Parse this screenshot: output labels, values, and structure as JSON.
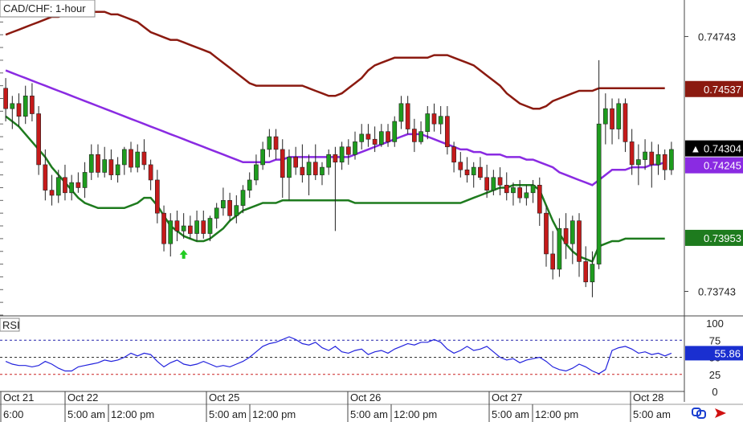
{
  "title": "CAD/CHF: 1-hour",
  "chart_data": {
    "type": "candlestick",
    "title": "CAD/CHF: 1-hour",
    "symbol": "CAD/CHF",
    "timeframe": "1-hour",
    "price_ticks": [
      "0.74743",
      "0.73743"
    ],
    "price_ylim": [
      0.7365,
      0.7488
    ],
    "date_labels": [
      "Oct 21",
      "Oct 22",
      "Oct 25",
      "Oct 26",
      "Oct 27",
      "Oct 28"
    ],
    "time_labels": [
      "6:00",
      "5:00 am",
      "12:00 pm",
      "5:00 am",
      "12:00 pm",
      "5:00 am",
      "12:00 pm",
      "5:00 am",
      "12:00 pm",
      "5:00 am"
    ],
    "price_badges": [
      {
        "label": "0.74537",
        "value": 0.74537,
        "color": "#8b1a10"
      },
      {
        "label": "▲ 0.74304",
        "value": 0.74304,
        "color": "#000000"
      },
      {
        "label": "0.74245",
        "value": 0.74245,
        "color": "#8a2be2"
      },
      {
        "label": "0.73953",
        "value": 0.73953,
        "color": "#1e7b1e"
      }
    ],
    "candles": [
      [
        0.7454,
        0.7458,
        0.7441,
        0.7446
      ],
      [
        0.7446,
        0.7451,
        0.7438,
        0.7448
      ],
      [
        0.7448,
        0.7452,
        0.7439,
        0.7443
      ],
      [
        0.7443,
        0.7455,
        0.744,
        0.7451
      ],
      [
        0.7451,
        0.7456,
        0.7441,
        0.7444
      ],
      [
        0.7444,
        0.7447,
        0.742,
        0.7424
      ],
      [
        0.7424,
        0.743,
        0.741,
        0.7414
      ],
      [
        0.7414,
        0.742,
        0.7408,
        0.7412
      ],
      [
        0.7412,
        0.7422,
        0.7409,
        0.7419
      ],
      [
        0.7419,
        0.7424,
        0.741,
        0.7413
      ],
      [
        0.7413,
        0.742,
        0.741,
        0.7417
      ],
      [
        0.7417,
        0.7421,
        0.7413,
        0.7415
      ],
      [
        0.7415,
        0.7425,
        0.7411,
        0.7421
      ],
      [
        0.7421,
        0.7432,
        0.7418,
        0.7428
      ],
      [
        0.7428,
        0.7432,
        0.7419,
        0.7421
      ],
      [
        0.7421,
        0.7431,
        0.7419,
        0.7426
      ],
      [
        0.7426,
        0.743,
        0.7418,
        0.742
      ],
      [
        0.742,
        0.7427,
        0.7417,
        0.7424
      ],
      [
        0.7424,
        0.7431,
        0.742,
        0.743
      ],
      [
        0.743,
        0.7433,
        0.7421,
        0.7423
      ],
      [
        0.7423,
        0.7432,
        0.7421,
        0.7429
      ],
      [
        0.7429,
        0.7434,
        0.7422,
        0.7424
      ],
      [
        0.7424,
        0.7426,
        0.7414,
        0.7418
      ],
      [
        0.7418,
        0.7422,
        0.7401,
        0.7405
      ],
      [
        0.7405,
        0.7408,
        0.739,
        0.7393
      ],
      [
        0.7393,
        0.7405,
        0.7388,
        0.7402
      ],
      [
        0.7402,
        0.7406,
        0.7394,
        0.7398
      ],
      [
        0.7398,
        0.7405,
        0.7395,
        0.74
      ],
      [
        0.74,
        0.7404,
        0.7395,
        0.7397
      ],
      [
        0.7397,
        0.7406,
        0.7394,
        0.7402
      ],
      [
        0.7402,
        0.7406,
        0.7395,
        0.7397
      ],
      [
        0.7397,
        0.7404,
        0.7394,
        0.7403
      ],
      [
        0.7403,
        0.7409,
        0.7399,
        0.7407
      ],
      [
        0.7407,
        0.7415,
        0.7404,
        0.741
      ],
      [
        0.741,
        0.7413,
        0.7402,
        0.7404
      ],
      [
        0.7404,
        0.7412,
        0.7401,
        0.7408
      ],
      [
        0.7408,
        0.7416,
        0.7405,
        0.7414
      ],
      [
        0.7414,
        0.7421,
        0.7411,
        0.7418
      ],
      [
        0.7418,
        0.7428,
        0.7416,
        0.7424
      ],
      [
        0.7424,
        0.7433,
        0.7422,
        0.743
      ],
      [
        0.743,
        0.7438,
        0.7427,
        0.7435
      ],
      [
        0.7435,
        0.7438,
        0.7426,
        0.743
      ],
      [
        0.743,
        0.7434,
        0.7411,
        0.7419
      ],
      [
        0.7419,
        0.743,
        0.741,
        0.7427
      ],
      [
        0.7427,
        0.7431,
        0.742,
        0.7423
      ],
      [
        0.7423,
        0.7432,
        0.7417,
        0.742
      ],
      [
        0.742,
        0.7428,
        0.7412,
        0.7425
      ],
      [
        0.7425,
        0.7432,
        0.7418,
        0.742
      ],
      [
        0.742,
        0.7425,
        0.7416,
        0.7423
      ],
      [
        0.7423,
        0.743,
        0.742,
        0.7428
      ],
      [
        0.7428,
        0.7431,
        0.7398,
        0.7425
      ],
      [
        0.7425,
        0.7433,
        0.7422,
        0.7431
      ],
      [
        0.7431,
        0.7434,
        0.7424,
        0.7428
      ],
      [
        0.7428,
        0.7437,
        0.7426,
        0.7433
      ],
      [
        0.7433,
        0.744,
        0.743,
        0.7436
      ],
      [
        0.7436,
        0.744,
        0.7431,
        0.7434
      ],
      [
        0.7434,
        0.7439,
        0.7429,
        0.7432
      ],
      [
        0.7432,
        0.744,
        0.7431,
        0.7437
      ],
      [
        0.7437,
        0.744,
        0.7431,
        0.7433
      ],
      [
        0.7433,
        0.7443,
        0.7431,
        0.7441
      ],
      [
        0.7441,
        0.7451,
        0.7438,
        0.7448
      ],
      [
        0.7448,
        0.7451,
        0.7436,
        0.7438
      ],
      [
        0.7438,
        0.7442,
        0.7429,
        0.7433
      ],
      [
        0.7433,
        0.7441,
        0.7432,
        0.7437
      ],
      [
        0.7437,
        0.7447,
        0.7434,
        0.7444
      ],
      [
        0.7444,
        0.7448,
        0.7437,
        0.744
      ],
      [
        0.744,
        0.7447,
        0.7436,
        0.7443
      ],
      [
        0.7443,
        0.7447,
        0.7428,
        0.7431
      ],
      [
        0.7431,
        0.7433,
        0.7421,
        0.7425
      ],
      [
        0.7425,
        0.7429,
        0.7419,
        0.7422
      ],
      [
        0.7422,
        0.7427,
        0.7417,
        0.742
      ],
      [
        0.742,
        0.7425,
        0.7415,
        0.7423
      ],
      [
        0.7423,
        0.7427,
        0.7418,
        0.7419
      ],
      [
        0.7419,
        0.7424,
        0.7411,
        0.7414
      ],
      [
        0.7414,
        0.7422,
        0.7412,
        0.7419
      ],
      [
        0.7419,
        0.7423,
        0.7412,
        0.7416
      ],
      [
        0.7416,
        0.7421,
        0.741,
        0.7413
      ],
      [
        0.7413,
        0.7417,
        0.7408,
        0.7415
      ],
      [
        0.7415,
        0.7418,
        0.7409,
        0.7411
      ],
      [
        0.7411,
        0.7416,
        0.7408,
        0.7413
      ],
      [
        0.7413,
        0.7418,
        0.7409,
        0.7416
      ],
      [
        0.7416,
        0.7419,
        0.74,
        0.7405
      ],
      [
        0.7405,
        0.7408,
        0.7384,
        0.7389
      ],
      [
        0.7389,
        0.7398,
        0.7379,
        0.7383
      ],
      [
        0.7383,
        0.7403,
        0.738,
        0.7399
      ],
      [
        0.7399,
        0.7405,
        0.7387,
        0.7393
      ],
      [
        0.7393,
        0.7404,
        0.7385,
        0.7402
      ],
      [
        0.7402,
        0.7405,
        0.738,
        0.7386
      ],
      [
        0.7386,
        0.7392,
        0.7376,
        0.7378
      ],
      [
        0.7378,
        0.739,
        0.7372,
        0.7385
      ],
      [
        0.7385,
        0.7465,
        0.7383,
        0.744
      ],
      [
        0.744,
        0.7452,
        0.7432,
        0.7446
      ],
      [
        0.7446,
        0.745,
        0.7432,
        0.7438
      ],
      [
        0.7438,
        0.745,
        0.7434,
        0.7448
      ],
      [
        0.7448,
        0.745,
        0.7429,
        0.7433
      ],
      [
        0.7433,
        0.7438,
        0.742,
        0.7424
      ],
      [
        0.7424,
        0.7432,
        0.7416,
        0.7426
      ],
      [
        0.7426,
        0.7434,
        0.7422,
        0.7429
      ],
      [
        0.7429,
        0.7433,
        0.7415,
        0.7424
      ],
      [
        0.7424,
        0.7432,
        0.742,
        0.7428
      ],
      [
        0.7428,
        0.743,
        0.7418,
        0.7422
      ],
      [
        0.7422,
        0.7433,
        0.742,
        0.743
      ]
    ],
    "bands": {
      "upper": [
        0.7475,
        0.7476,
        0.7477,
        0.7478,
        0.7479,
        0.748,
        0.7481,
        0.7482,
        0.7482,
        0.7483,
        0.7483,
        0.7483,
        0.7484,
        0.7484,
        0.7484,
        0.7484,
        0.7483,
        0.7483,
        0.7482,
        0.7481,
        0.748,
        0.7478,
        0.7476,
        0.7475,
        0.7474,
        0.7473,
        0.7473,
        0.7472,
        0.7471,
        0.747,
        0.7469,
        0.7468,
        0.7466,
        0.7464,
        0.7462,
        0.746,
        0.7458,
        0.7456,
        0.7455,
        0.7455,
        0.7455,
        0.7455,
        0.7455,
        0.7455,
        0.7455,
        0.7455,
        0.7454,
        0.7453,
        0.7452,
        0.7451,
        0.7451,
        0.7452,
        0.7454,
        0.7456,
        0.7458,
        0.7461,
        0.7463,
        0.7464,
        0.7465,
        0.7466,
        0.7466,
        0.7466,
        0.7466,
        0.7466,
        0.7466,
        0.7467,
        0.7467,
        0.7467,
        0.7466,
        0.7465,
        0.7464,
        0.7463,
        0.7461,
        0.7459,
        0.7457,
        0.7455,
        0.7452,
        0.745,
        0.7448,
        0.7447,
        0.7446,
        0.7446,
        0.7447,
        0.7449,
        0.745,
        0.7451,
        0.7452,
        0.7453,
        0.7453,
        0.7453,
        0.7454,
        0.7454,
        0.7454,
        0.7454,
        0.7454,
        0.7454,
        0.7454,
        0.7454,
        0.7454,
        0.7454,
        0.7454
      ],
      "middle": [
        0.7461,
        0.746,
        0.7459,
        0.7458,
        0.7457,
        0.7456,
        0.7455,
        0.7454,
        0.7453,
        0.7452,
        0.7451,
        0.745,
        0.7449,
        0.7448,
        0.7447,
        0.7446,
        0.7445,
        0.7444,
        0.7443,
        0.7442,
        0.7441,
        0.744,
        0.7439,
        0.7438,
        0.7437,
        0.7436,
        0.7435,
        0.7434,
        0.7433,
        0.7432,
        0.7431,
        0.743,
        0.7429,
        0.7428,
        0.7427,
        0.7426,
        0.7425,
        0.7425,
        0.7425,
        0.7425,
        0.7425,
        0.7426,
        0.7426,
        0.7427,
        0.7427,
        0.7427,
        0.7427,
        0.7427,
        0.7427,
        0.7427,
        0.7427,
        0.7427,
        0.7427,
        0.7428,
        0.7429,
        0.743,
        0.7431,
        0.7432,
        0.7433,
        0.7434,
        0.7435,
        0.7436,
        0.7436,
        0.7436,
        0.7435,
        0.7434,
        0.7433,
        0.7432,
        0.7431,
        0.743,
        0.743,
        0.7429,
        0.7429,
        0.7428,
        0.7428,
        0.7428,
        0.7427,
        0.7427,
        0.7427,
        0.7426,
        0.7426,
        0.7425,
        0.7424,
        0.7423,
        0.7421,
        0.742,
        0.7419,
        0.7418,
        0.7417,
        0.7416,
        0.7418,
        0.742,
        0.7422,
        0.7422,
        0.7422,
        0.7423,
        0.7423,
        0.7423,
        0.7424,
        0.7424,
        0.7425
      ],
      "lower": [
        0.7443,
        0.7441,
        0.7439,
        0.7436,
        0.7433,
        0.743,
        0.7427,
        0.7423,
        0.742,
        0.7417,
        0.7414,
        0.7411,
        0.7409,
        0.7408,
        0.7407,
        0.7407,
        0.7407,
        0.7407,
        0.7407,
        0.7408,
        0.7409,
        0.7411,
        0.7411,
        0.7408,
        0.7404,
        0.74,
        0.7398,
        0.7396,
        0.7395,
        0.7394,
        0.7394,
        0.7395,
        0.7397,
        0.7399,
        0.7402,
        0.7404,
        0.7406,
        0.7407,
        0.7408,
        0.7409,
        0.7409,
        0.7409,
        0.741,
        0.741,
        0.741,
        0.741,
        0.741,
        0.741,
        0.741,
        0.741,
        0.741,
        0.741,
        0.741,
        0.7409,
        0.7409,
        0.7409,
        0.7409,
        0.7409,
        0.7409,
        0.7409,
        0.7409,
        0.7409,
        0.7409,
        0.7409,
        0.7409,
        0.7409,
        0.7409,
        0.7409,
        0.7409,
        0.7409,
        0.741,
        0.7411,
        0.7412,
        0.7413,
        0.7414,
        0.7415,
        0.7415,
        0.7416,
        0.7416,
        0.7416,
        0.7416,
        0.7414,
        0.7408,
        0.7402,
        0.7397,
        0.7393,
        0.739,
        0.7388,
        0.7387,
        0.7386,
        0.7392,
        0.7393,
        0.7394,
        0.7394,
        0.7395,
        0.7395,
        0.7395,
        0.7395,
        0.7395,
        0.7395,
        0.7395
      ]
    },
    "signal_arrow": {
      "index": 27,
      "direction": "up",
      "color": "#22cc22"
    },
    "rsi": {
      "label": "RSI",
      "current_label": "55.86",
      "ticks": [
        "100",
        "75",
        "50",
        "25",
        "0"
      ],
      "levels": [
        75,
        50,
        25
      ],
      "ylim": [
        0,
        100
      ],
      "values": [
        44,
        40,
        38,
        38,
        36,
        38,
        44,
        40,
        34,
        30,
        30,
        36,
        38,
        40,
        42,
        46,
        44,
        46,
        50,
        56,
        52,
        56,
        54,
        44,
        36,
        42,
        46,
        40,
        38,
        40,
        44,
        40,
        36,
        38,
        36,
        40,
        44,
        50,
        58,
        66,
        70,
        72,
        76,
        80,
        76,
        70,
        68,
        72,
        64,
        60,
        66,
        58,
        56,
        60,
        62,
        54,
        58,
        60,
        56,
        62,
        66,
        70,
        68,
        72,
        72,
        76,
        72,
        62,
        56,
        60,
        66,
        60,
        62,
        66,
        58,
        50,
        46,
        48,
        42,
        46,
        48,
        50,
        44,
        36,
        32,
        30,
        34,
        40,
        36,
        30,
        26,
        32,
        60,
        64,
        66,
        62,
        56,
        58,
        54,
        56,
        52,
        56
      ]
    },
    "colors": {
      "bull": "#1e9c1e",
      "bear": "#c51a1a",
      "upper_band": "#8b1a10",
      "middle_band": "#8a2be2",
      "lower_band": "#1e7b1e",
      "rsi_line": "#2222dd",
      "rsi_upper_level": "#2222aa",
      "rsi_lower_level": "#cc2222"
    }
  }
}
